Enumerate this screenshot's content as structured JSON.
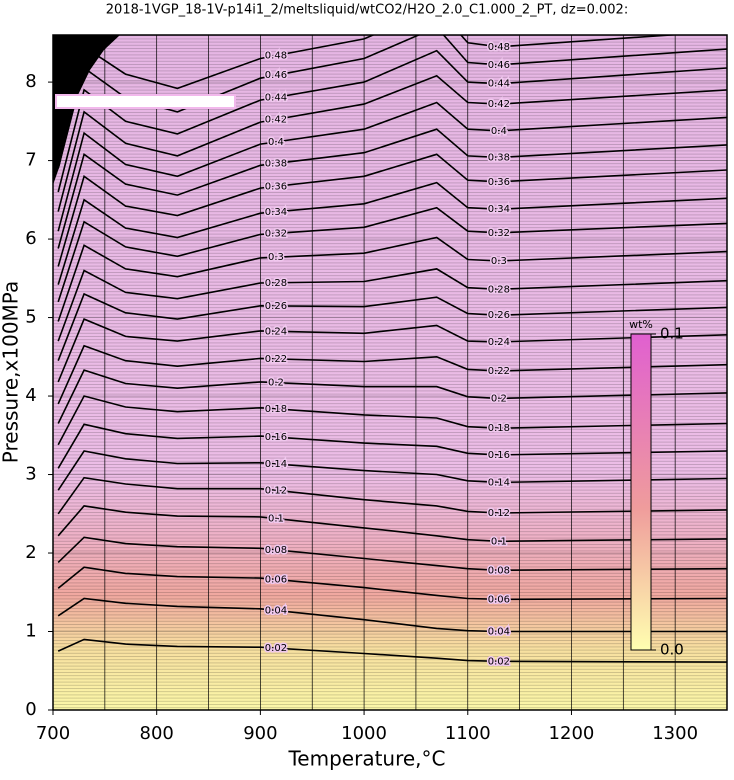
{
  "chart_data": {
    "type": "contour",
    "title": "2018-1VGP_18-1V-p14i1_2/meltsliquid/wtCO2/H2O_2.0_C1.000_2_PT, dz=0.002:",
    "x_label": "Temperature,°C",
    "y_label": "Pressure,x100MPa",
    "xlim": [
      700,
      1350
    ],
    "ylim": [
      0,
      8.6
    ],
    "xticks": [
      700,
      800,
      900,
      1000,
      1100,
      1200,
      1300
    ],
    "xgrid": [
      750,
      800,
      850,
      900,
      950,
      1000,
      1050,
      1100,
      1150,
      1200,
      1250,
      1300
    ],
    "yticks": [
      0,
      1,
      2,
      3,
      4,
      5,
      6,
      7,
      8
    ],
    "grid": true,
    "line_color": "#000000",
    "x": [
      705,
      730,
      770,
      820,
      900,
      1000,
      1070,
      1100,
      1130,
      1350
    ],
    "levels": [
      0.02,
      0.04,
      0.06,
      0.08,
      0.1,
      0.12,
      0.14,
      0.16,
      0.18,
      0.2,
      0.22,
      0.24,
      0.26,
      0.28,
      0.3,
      0.32,
      0.34,
      0.36,
      0.38,
      0.4,
      0.42,
      0.44,
      0.46,
      0.48
    ],
    "contours": [
      [
        0.75,
        0.9,
        0.84,
        0.81,
        0.8,
        0.72,
        0.66,
        0.63,
        0.62,
        0.61
      ],
      [
        1.2,
        1.42,
        1.36,
        1.32,
        1.29,
        1.15,
        1.04,
        1.01,
        1.0,
        1.0
      ],
      [
        1.55,
        1.82,
        1.74,
        1.7,
        1.68,
        1.56,
        1.46,
        1.42,
        1.41,
        1.42
      ],
      [
        1.88,
        2.2,
        2.12,
        2.08,
        2.06,
        1.93,
        1.84,
        1.8,
        1.78,
        1.8
      ],
      [
        2.22,
        2.6,
        2.52,
        2.47,
        2.46,
        2.32,
        2.22,
        2.17,
        2.15,
        2.18
      ],
      [
        2.5,
        2.96,
        2.88,
        2.82,
        2.82,
        2.68,
        2.6,
        2.53,
        2.51,
        2.55
      ],
      [
        2.8,
        3.3,
        3.2,
        3.14,
        3.15,
        3.05,
        3.0,
        2.92,
        2.9,
        2.95
      ],
      [
        3.08,
        3.64,
        3.52,
        3.46,
        3.49,
        3.4,
        3.36,
        3.27,
        3.25,
        3.3
      ],
      [
        3.38,
        4.0,
        3.86,
        3.8,
        3.85,
        3.76,
        3.72,
        3.61,
        3.59,
        3.65
      ],
      [
        3.65,
        4.33,
        4.16,
        4.1,
        4.18,
        4.12,
        4.12,
        3.99,
        3.97,
        4.04
      ],
      [
        3.9,
        4.64,
        4.45,
        4.38,
        4.48,
        4.44,
        4.5,
        4.34,
        4.32,
        4.4
      ],
      [
        4.18,
        4.98,
        4.76,
        4.7,
        4.83,
        4.8,
        4.9,
        4.7,
        4.69,
        4.78
      ],
      [
        4.45,
        5.3,
        5.06,
        4.98,
        5.15,
        5.14,
        5.26,
        5.05,
        5.03,
        5.13
      ],
      [
        4.7,
        5.6,
        5.32,
        5.24,
        5.44,
        5.46,
        5.62,
        5.38,
        5.36,
        5.47
      ],
      [
        4.95,
        5.92,
        5.62,
        5.52,
        5.76,
        5.82,
        6.02,
        5.74,
        5.72,
        5.84
      ],
      [
        5.2,
        6.22,
        5.9,
        5.78,
        6.06,
        6.15,
        6.4,
        6.1,
        6.08,
        6.2
      ],
      [
        5.42,
        6.5,
        6.14,
        6.02,
        6.33,
        6.45,
        6.72,
        6.4,
        6.38,
        6.52
      ],
      [
        5.65,
        6.8,
        6.42,
        6.3,
        6.65,
        6.8,
        7.08,
        6.75,
        6.73,
        6.88
      ],
      [
        5.88,
        7.08,
        6.7,
        6.56,
        6.94,
        7.1,
        7.4,
        7.06,
        7.04,
        7.2
      ],
      [
        6.1,
        7.35,
        6.95,
        6.8,
        7.21,
        7.4,
        7.74,
        7.4,
        7.38,
        7.55
      ],
      [
        6.35,
        7.62,
        7.22,
        7.06,
        7.49,
        7.72,
        8.08,
        7.74,
        7.72,
        7.9
      ],
      [
        6.6,
        7.9,
        7.5,
        7.34,
        7.77,
        8.0,
        8.4,
        8.0,
        7.98,
        8.18
      ],
      [
        6.9,
        8.18,
        7.8,
        7.62,
        8.05,
        8.3,
        8.7,
        8.25,
        8.22,
        8.42
      ],
      [
        7.2,
        8.45,
        8.1,
        7.92,
        8.3,
        8.55,
        8.95,
        8.5,
        8.45,
        8.65
      ]
    ],
    "label_x": [
      915,
      1130
    ],
    "colorbar": {
      "label": "wt%",
      "range": [
        0,
        0.1
      ],
      "ticks": [
        {
          "value": 0,
          "label": "0.0"
        },
        0.1
      ]
    }
  }
}
